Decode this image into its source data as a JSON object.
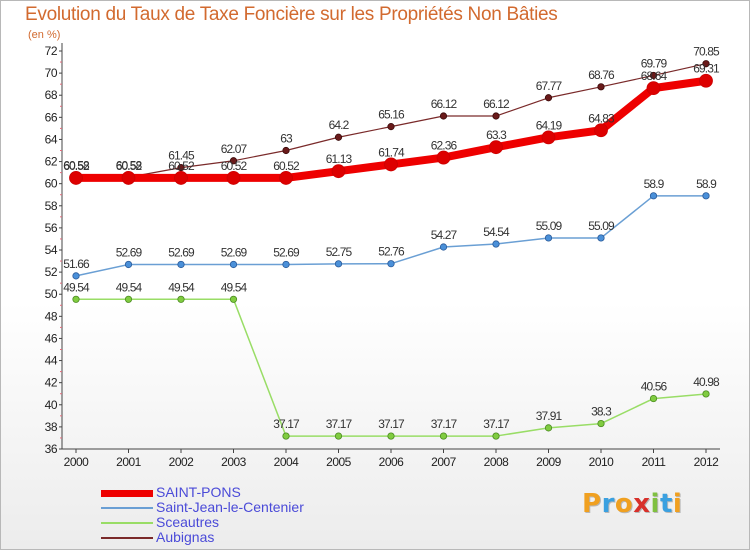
{
  "header": {
    "title": "Evolution du Taux de Taxe Foncière sur les Propriétés Non Bâties",
    "unit": "(en %)"
  },
  "brand": {
    "text": "Proxiti",
    "letters": [
      "P",
      "r",
      "o",
      "x",
      "i",
      "t",
      "i"
    ],
    "colors": [
      "#f0a020",
      "#3aa0e0",
      "#f0a020",
      "#d8302a",
      "#80c040",
      "#3aa0e0",
      "#f0a020"
    ]
  },
  "chart_data": {
    "type": "line",
    "title": "Evolution du Taux de Taxe Foncière sur les Propriétés Non Bâties",
    "ylabel": "(en %)",
    "xlabel": "",
    "x": [
      "2000",
      "2001",
      "2002",
      "2003",
      "2004",
      "2005",
      "2006",
      "2007",
      "2008",
      "2009",
      "2010",
      "2011",
      "2012"
    ],
    "ylim": [
      36,
      72
    ],
    "ytick_step": 2,
    "grid": false,
    "legend_position": "bottom-left",
    "series": [
      {
        "name": "SAINT-PONS",
        "color": "#ee0000",
        "values": [
          60.52,
          60.52,
          60.52,
          60.52,
          60.52,
          61.13,
          61.74,
          62.36,
          63.3,
          64.19,
          64.83,
          68.64,
          69.31
        ],
        "labels": [
          "60.52",
          "60.52",
          "60.52",
          "60.52",
          "60.52",
          "61.13",
          "61.74",
          "62.36",
          "63.3",
          "64.19",
          "64.83",
          "68.64",
          "69.31"
        ]
      },
      {
        "name": "Saint-Jean-le-Centenier",
        "color": "#6a9fd4",
        "values": [
          51.66,
          52.69,
          52.69,
          52.69,
          52.69,
          52.75,
          52.76,
          54.27,
          54.54,
          55.09,
          55.09,
          58.9,
          58.9
        ],
        "labels": [
          "51.66",
          "52.69",
          "52.69",
          "52.69",
          "52.69",
          "52.75",
          "52.76",
          "54.27",
          "54.54",
          "55.09",
          "55.09",
          "58.9",
          "58.9"
        ]
      },
      {
        "name": "Sceautres",
        "color": "#99dd66",
        "values": [
          49.54,
          49.54,
          49.54,
          49.54,
          37.17,
          37.17,
          37.17,
          37.17,
          37.17,
          37.91,
          38.3,
          40.56,
          40.98
        ],
        "labels": [
          "49.54",
          "49.54",
          "49.54",
          "49.54",
          "37.17",
          "37.17",
          "37.17",
          "37.17",
          "37.17",
          "37.91",
          "38.3",
          "40.56",
          "40.98"
        ]
      },
      {
        "name": "Aubignas",
        "color": "#7a2a2a",
        "values": [
          60.58,
          60.58,
          61.45,
          62.07,
          63,
          64.2,
          65.16,
          66.12,
          66.12,
          67.77,
          68.76,
          69.79,
          70.85
        ],
        "labels": [
          "60.58",
          "60.58",
          "61.45",
          "62.07",
          "63",
          "64.2",
          "65.16",
          "66.12",
          "66.12",
          "67.77",
          "68.76",
          "69.79",
          "70.85"
        ]
      }
    ]
  }
}
